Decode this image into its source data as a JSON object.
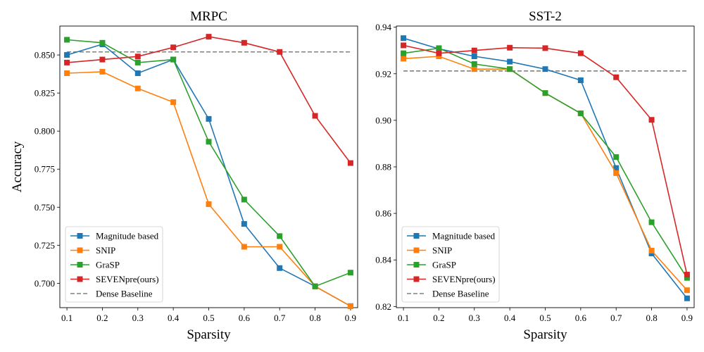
{
  "chart_data": [
    {
      "type": "line",
      "title": "MRPC",
      "xlabel": "Sparsity",
      "ylabel": "Accuracy",
      "x": [
        0.1,
        0.2,
        0.3,
        0.4,
        0.5,
        0.6,
        0.7,
        0.8,
        0.9
      ],
      "xticks": [
        "0.1",
        "0.2",
        "0.3",
        "0.4",
        "0.5",
        "0.6",
        "0.7",
        "0.8",
        "0.9"
      ],
      "ylim": [
        0.684,
        0.869
      ],
      "yticks": [
        "0.700",
        "0.725",
        "0.750",
        "0.775",
        "0.800",
        "0.825",
        "0.850"
      ],
      "grid": false,
      "legend_position": "lower-left",
      "series": [
        {
          "name": "Magnitude based",
          "color": "#1f77b4",
          "values": [
            0.85,
            0.857,
            0.838,
            0.847,
            0.808,
            0.739,
            0.71,
            0.698,
            0.685
          ]
        },
        {
          "name": "SNIP",
          "color": "#ff7f0e",
          "values": [
            0.838,
            0.839,
            0.828,
            0.819,
            0.752,
            0.724,
            0.724,
            0.698,
            0.685
          ]
        },
        {
          "name": "GraSP",
          "color": "#2ca02c",
          "values": [
            0.86,
            0.858,
            0.845,
            0.847,
            0.793,
            0.755,
            0.731,
            0.698,
            0.707
          ]
        },
        {
          "name": "SEVENpre(ours)",
          "color": "#d62728",
          "values": [
            0.845,
            0.847,
            0.849,
            0.855,
            0.862,
            0.858,
            0.852,
            0.81,
            0.779
          ]
        }
      ],
      "baseline": {
        "name": "Dense Baseline",
        "color": "#808080",
        "value": 0.852
      }
    },
    {
      "type": "line",
      "title": "SST-2",
      "xlabel": "Sparsity",
      "ylabel": "",
      "x": [
        0.1,
        0.2,
        0.3,
        0.4,
        0.5,
        0.6,
        0.7,
        0.8,
        0.9
      ],
      "xticks": [
        "0.1",
        "0.2",
        "0.3",
        "0.4",
        "0.5",
        "0.6",
        "0.7",
        "0.8",
        "0.9"
      ],
      "ylim": [
        0.8195,
        0.9405
      ],
      "yticks": [
        "0.82",
        "0.84",
        "0.86",
        "0.88",
        "0.90",
        "0.92",
        "0.94"
      ],
      "grid": false,
      "legend_position": "lower-left",
      "series": [
        {
          "name": "Magnitude based",
          "color": "#1f77b4",
          "values": [
            0.9353,
            0.9307,
            0.9275,
            0.9252,
            0.922,
            0.9172,
            0.8795,
            0.8428,
            0.8235
          ]
        },
        {
          "name": "SNIP",
          "color": "#ff7f0e",
          "values": [
            0.9265,
            0.9275,
            0.922,
            0.922,
            0.9117,
            0.903,
            0.8773,
            0.844,
            0.827
          ]
        },
        {
          "name": "GraSP",
          "color": "#2ca02c",
          "values": [
            0.9288,
            0.931,
            0.9242,
            0.922,
            0.9117,
            0.903,
            0.8842,
            0.8562,
            0.8323
          ]
        },
        {
          "name": "SEVENpre(ours)",
          "color": "#d62728",
          "values": [
            0.9322,
            0.9288,
            0.93,
            0.9312,
            0.931,
            0.9288,
            0.9185,
            0.9002,
            0.8337
          ]
        }
      ],
      "baseline": {
        "name": "Dense Baseline",
        "color": "#808080",
        "value": 0.9212
      }
    }
  ]
}
